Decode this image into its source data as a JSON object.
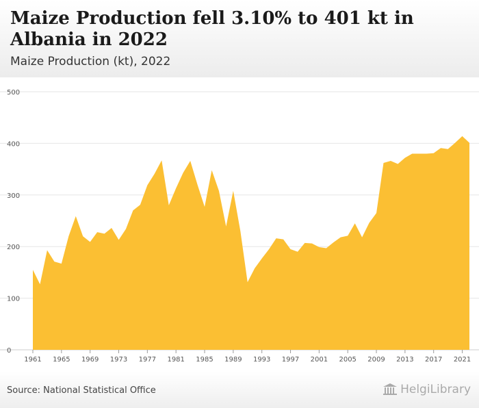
{
  "header": {
    "title": "Maize Production fell 3.10% to 401 kt in Albania in 2022",
    "subtitle": "Maize Production (kt), 2022"
  },
  "footer": {
    "source": "Source: National Statistical Office",
    "logo_text": "HelgiLibrary"
  },
  "colors": {
    "area_fill": "#fbbf33",
    "grid": "#e6e6e6",
    "axis_text": "#555555"
  },
  "chart_data": {
    "type": "area",
    "title": "Maize Production fell 3.10% to 401 kt in Albania in 2022",
    "subtitle": "Maize Production (kt), 2022",
    "xlabel": "",
    "ylabel": "",
    "ylim": [
      0,
      500
    ],
    "yticks": [
      0,
      100,
      200,
      300,
      400,
      500
    ],
    "xticks": [
      1961,
      1965,
      1969,
      1973,
      1977,
      1981,
      1985,
      1989,
      1993,
      1997,
      2001,
      2005,
      2009,
      2013,
      2017,
      2021
    ],
    "grid": true,
    "legend": "none",
    "x": [
      1961,
      1962,
      1963,
      1964,
      1965,
      1966,
      1967,
      1968,
      1969,
      1970,
      1971,
      1972,
      1973,
      1974,
      1975,
      1976,
      1977,
      1978,
      1979,
      1980,
      1981,
      1982,
      1983,
      1984,
      1985,
      1986,
      1987,
      1988,
      1989,
      1990,
      1991,
      1992,
      1993,
      1994,
      1995,
      1996,
      1997,
      1998,
      1999,
      2000,
      2001,
      2002,
      2003,
      2004,
      2005,
      2006,
      2007,
      2008,
      2009,
      2010,
      2011,
      2012,
      2013,
      2014,
      2015,
      2016,
      2017,
      2018,
      2019,
      2020,
      2021,
      2022
    ],
    "series": [
      {
        "values": [
          155,
          127,
          193,
          171,
          167,
          220,
          259,
          220,
          209,
          228,
          225,
          236,
          213,
          234,
          270,
          281,
          319,
          341,
          367,
          280,
          313,
          343,
          366,
          320,
          277,
          348,
          308,
          239,
          308,
          230,
          131,
          158,
          177,
          195,
          216,
          214,
          195,
          190,
          207,
          206,
          199,
          197,
          208,
          218,
          221,
          245,
          218,
          246,
          265,
          362,
          366,
          360,
          372,
          380,
          380,
          380,
          381,
          391,
          389,
          401,
          414,
          401
        ]
      }
    ]
  }
}
